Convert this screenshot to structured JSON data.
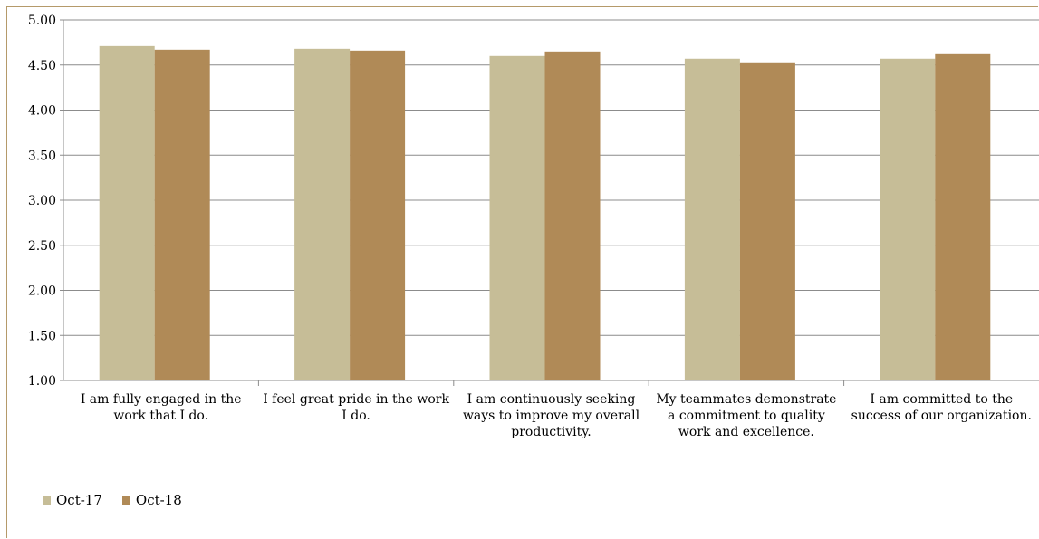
{
  "chart_data": {
    "type": "bar",
    "title": "",
    "xlabel": "",
    "ylabel": "",
    "ylim": [
      1.0,
      5.0
    ],
    "yticks": [
      "1.00",
      "1.50",
      "2.00",
      "2.50",
      "3.00",
      "3.50",
      "4.00",
      "4.50",
      "5.00"
    ],
    "grid": true,
    "legend_position": "bottom-left",
    "categories": [
      [
        "I am fully engaged in the",
        "work that I do."
      ],
      [
        "I feel great pride in the work",
        "I do."
      ],
      [
        "I am continuously seeking",
        "ways to improve my overall",
        "productivity."
      ],
      [
        "My teammates demonstrate",
        "a commitment to quality",
        "work and excellence."
      ],
      [
        "I am committed to the",
        "success of our organization."
      ]
    ],
    "series": [
      {
        "name": "Oct-17",
        "color": "#c6bd97",
        "values": [
          4.71,
          4.68,
          4.6,
          4.57,
          4.57
        ]
      },
      {
        "name": "Oct-18",
        "color": "#b08a57",
        "values": [
          4.67,
          4.66,
          4.65,
          4.53,
          4.62
        ]
      }
    ]
  }
}
